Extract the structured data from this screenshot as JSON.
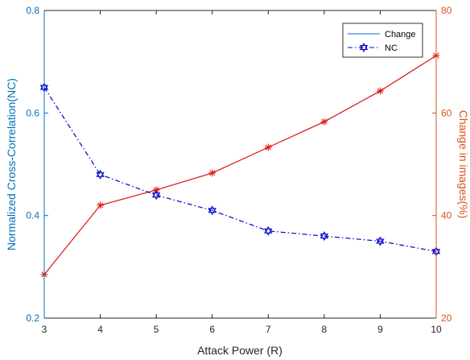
{
  "chart_data": {
    "type": "line",
    "title": "",
    "xlabel": "Attack Power (R)",
    "ylabel_left": "Normalized Cross-Correlation(NC)",
    "ylabel_right": "Change in images(%)",
    "x": [
      3,
      4,
      5,
      6,
      7,
      8,
      9,
      10
    ],
    "xlim": [
      3,
      10
    ],
    "ylim_left": [
      0.2,
      0.8
    ],
    "ylim_right": [
      20,
      80
    ],
    "xticks": [
      "3",
      "4",
      "5",
      "6",
      "7",
      "8",
      "9",
      "10"
    ],
    "yticks_left": [
      "0.2",
      "0.4",
      "0.6",
      "0.8"
    ],
    "yticks_right": [
      "20",
      "40",
      "60",
      "80"
    ],
    "grid": false,
    "legend_position": "top-right",
    "series": [
      {
        "name": "NC",
        "axis": "left",
        "color": "#0000cc",
        "style": "dash-dot",
        "marker": "hexagram",
        "values": [
          0.65,
          0.48,
          0.44,
          0.41,
          0.37,
          0.36,
          0.35,
          0.33
        ]
      },
      {
        "name": "",
        "axis": "right",
        "color": "#dd1111",
        "style": "solid",
        "marker": "asterisk",
        "values": [
          28.5,
          42,
          45,
          48.3,
          53.3,
          58.3,
          64.3,
          71.2
        ]
      }
    ],
    "legend": [
      {
        "label": "Change",
        "color": "#0072bd",
        "style": "solid"
      },
      {
        "label": "NC",
        "color": "#0000cc",
        "style": "dash-dot",
        "marker": "hexagram"
      }
    ],
    "colors": {
      "left_axis": "#0072bd",
      "right_axis": "#d95319"
    }
  }
}
